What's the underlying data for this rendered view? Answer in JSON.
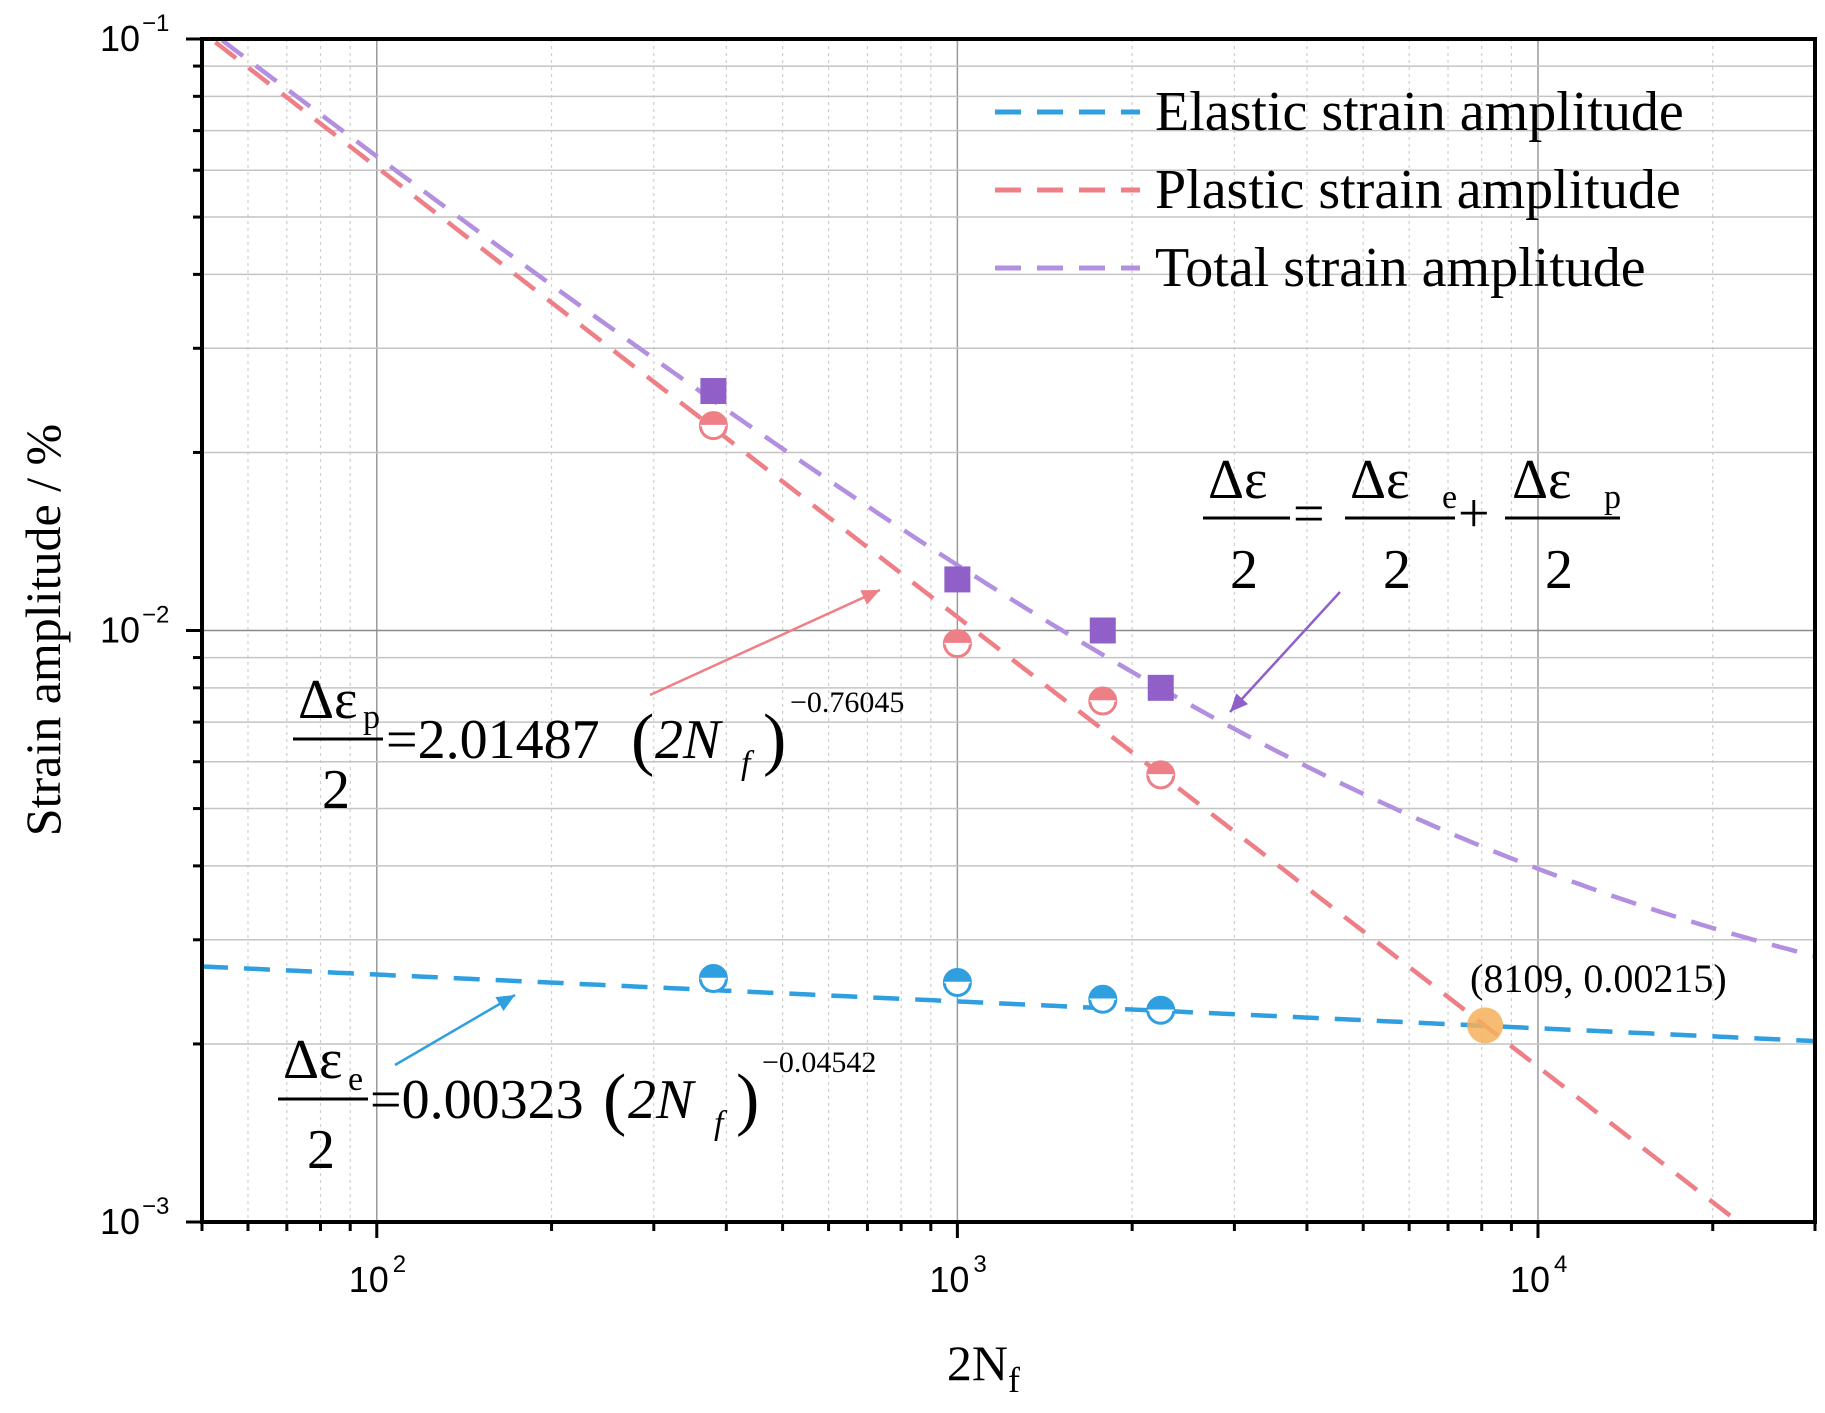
{
  "chart_data": {
    "type": "scatter",
    "xscale": "log",
    "yscale": "log",
    "xlim": [
      50,
      30000
    ],
    "ylim": [
      0.001,
      0.1
    ],
    "xlabel": "2N",
    "xlabel_sub": "f",
    "ylabel": "Strain amplitude / %",
    "x_ticks": [
      {
        "value": 100,
        "base": "10",
        "exp": "2"
      },
      {
        "value": 1000,
        "base": "10",
        "exp": "3"
      },
      {
        "value": 10000,
        "base": "10",
        "exp": "4"
      }
    ],
    "y_ticks": [
      {
        "value": 0.1,
        "base": "10",
        "exp": "−1"
      },
      {
        "value": 0.01,
        "base": "10",
        "exp": "−2"
      },
      {
        "value": 0.001,
        "base": "10",
        "exp": "−3"
      }
    ],
    "series": [
      {
        "name": "Elastic strain amplitude",
        "kind": "fit",
        "color": "#2f9fe0",
        "coefficient": 0.00323,
        "exponent": -0.04542
      },
      {
        "name": "Plastic strain amplitude",
        "kind": "fit",
        "color": "#ee7f86",
        "coefficient": 2.01487,
        "exponent": -0.76045
      },
      {
        "name": "Total strain amplitude",
        "kind": "fit",
        "color": "#b38fe0"
      },
      {
        "name": "Elastic data",
        "kind": "points",
        "marker": "half-circle",
        "color": "#2f9fe0",
        "x": [
          380,
          1000,
          1780,
          2240
        ],
        "y": [
          0.00258,
          0.00254,
          0.00238,
          0.00228
        ]
      },
      {
        "name": "Plastic data",
        "kind": "points",
        "marker": "half-circle",
        "color": "#ee7f86",
        "x": [
          380,
          1000,
          1780,
          2240
        ],
        "y": [
          0.0222,
          0.0095,
          0.0076,
          0.0057
        ]
      },
      {
        "name": "Total data",
        "kind": "points",
        "marker": "square",
        "color": "#9060c8",
        "x": [
          380,
          1000,
          1780,
          2240
        ],
        "y": [
          0.0254,
          0.0122,
          0.01,
          0.008
        ]
      }
    ],
    "annotations": {
      "intersection": {
        "label": "(8109, 0.00215)",
        "x": 8109,
        "y": 0.00215,
        "color": "#f5b05c"
      },
      "total_eq": {
        "lhs": "Δε",
        "e_sub": "e",
        "p_sub": "p",
        "den": "2"
      },
      "plastic_eq": {
        "lhs": "Δε",
        "sub": "p",
        "den": "2",
        "coef": "=2.01487",
        "paren_open": "(",
        "paren_close": ")",
        "var_n": "2N",
        "var_sub": "f",
        "exp": "−0.76045"
      },
      "elastic_eq": {
        "lhs": "Δε",
        "sub": "e",
        "den": "2",
        "coef": "=0.00323",
        "paren_open": "(",
        "paren_close": ")",
        "var_n": "2N",
        "var_sub": "f",
        "exp": "−0.04542"
      }
    },
    "legend_position": "top-right",
    "grid": true
  }
}
